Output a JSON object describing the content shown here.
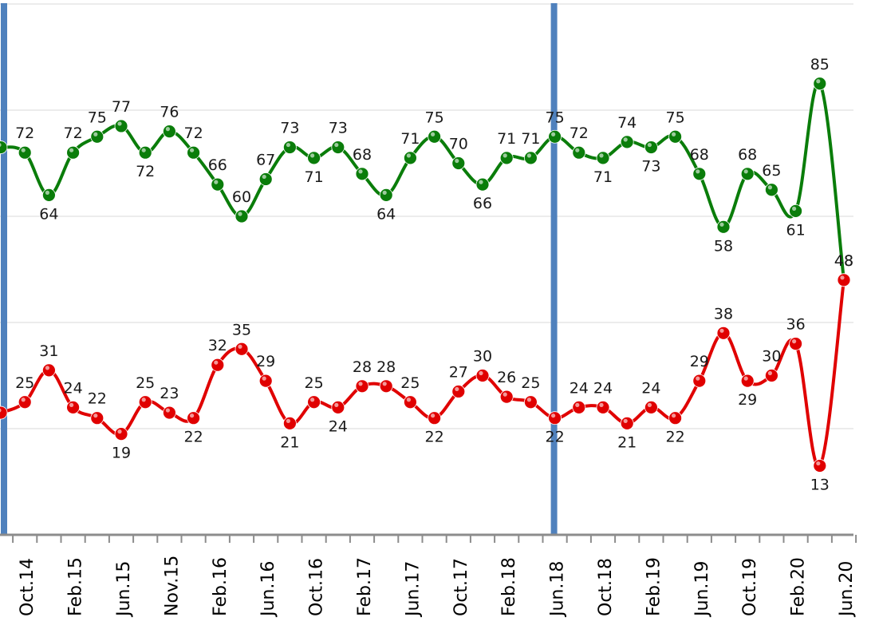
{
  "chart_data": {
    "type": "line",
    "title": "",
    "xlabel": "",
    "ylabel": "",
    "ylim": [
      0,
      100
    ],
    "grid": true,
    "x_tick_labels": [
      "Oct.14",
      "Feb.15",
      "Jun.15",
      "Nov.15",
      "Feb.16",
      "Jun.16",
      "Oct.16",
      "Feb.17",
      "Jun.17",
      "Oct.17",
      "Feb.18",
      "Jun.18",
      "Oct.18",
      "Feb.19",
      "Jun.19",
      "Oct.19",
      "Feb.20",
      "Jun.20"
    ],
    "series": [
      {
        "color": "#0a7d0a",
        "values": [
          73,
          72,
          64,
          72,
          75,
          77,
          72,
          76,
          72,
          66,
          60,
          67,
          73,
          71,
          73,
          68,
          64,
          71,
          75,
          70,
          66,
          71,
          71,
          75,
          72,
          71,
          74,
          73,
          75,
          68,
          58,
          68,
          65,
          61,
          85,
          48
        ]
      },
      {
        "color": "#e00000",
        "values": [
          23,
          25,
          31,
          24,
          22,
          19,
          25,
          23,
          22,
          32,
          35,
          29,
          21,
          25,
          24,
          28,
          28,
          25,
          22,
          27,
          30,
          26,
          25,
          22,
          24,
          24,
          21,
          24,
          22,
          29,
          38,
          29,
          30,
          36,
          13,
          48
        ]
      }
    ],
    "vertical_markers": [
      "Jun.18"
    ]
  }
}
